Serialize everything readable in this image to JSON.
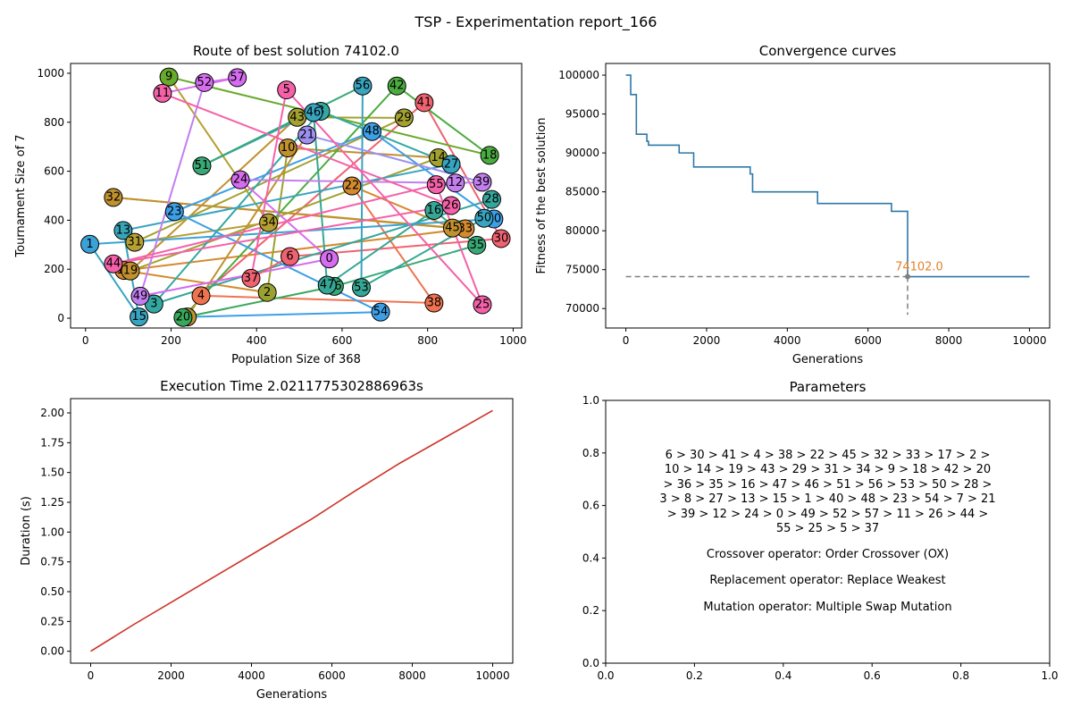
{
  "suptitle": "TSP - Experimentation report_166",
  "chart_data": [
    {
      "type": "scatter",
      "id": "route",
      "title": "Route of best solution 74102.0",
      "xlabel": "Population Size of 368",
      "ylabel": "Tournament Size of 7",
      "xlim": [
        -35,
        1020
      ],
      "ylim": [
        -40,
        1040
      ],
      "xticks": [
        0,
        200,
        400,
        600,
        800,
        1000
      ],
      "yticks": [
        0,
        200,
        400,
        600,
        800,
        1000
      ],
      "grid": false,
      "cities": [
        {
          "id": 0,
          "x": 570,
          "y": 242,
          "color": "#d66cf0"
        },
        {
          "id": 1,
          "x": 10,
          "y": 302,
          "color": "#3aa2d6"
        },
        {
          "id": 2,
          "x": 425,
          "y": 105,
          "color": "#9aa130"
        },
        {
          "id": 3,
          "x": 160,
          "y": 58,
          "color": "#33a8a2"
        },
        {
          "id": 4,
          "x": 270,
          "y": 92,
          "color": "#f0734f"
        },
        {
          "id": 5,
          "x": 470,
          "y": 932,
          "color": "#f561a8"
        },
        {
          "id": 6,
          "x": 478,
          "y": 252,
          "color": "#ef6270"
        },
        {
          "id": 7,
          "x": 238,
          "y": 5,
          "color": "#c0912e"
        },
        {
          "id": 8,
          "x": 550,
          "y": 845,
          "color": "#33a8a2"
        },
        {
          "id": 9,
          "x": 195,
          "y": 985,
          "color": "#68aa2d"
        },
        {
          "id": 10,
          "x": 473,
          "y": 695,
          "color": "#c0912e"
        },
        {
          "id": 11,
          "x": 180,
          "y": 918,
          "color": "#f561a8"
        },
        {
          "id": 12,
          "x": 865,
          "y": 552,
          "color": "#c37ef0"
        },
        {
          "id": 13,
          "x": 88,
          "y": 358,
          "color": "#36a5b8"
        },
        {
          "id": 14,
          "x": 825,
          "y": 655,
          "color": "#a3a12f"
        },
        {
          "id": 15,
          "x": 125,
          "y": 5,
          "color": "#37a4c0"
        },
        {
          "id": 16,
          "x": 815,
          "y": 440,
          "color": "#36a796"
        },
        {
          "id": 17,
          "x": 90,
          "y": 195,
          "color": "#d48a2e"
        },
        {
          "id": 18,
          "x": 945,
          "y": 665,
          "color": "#4aac3f"
        },
        {
          "id": 19,
          "x": 105,
          "y": 193,
          "color": "#c0912e"
        },
        {
          "id": 20,
          "x": 228,
          "y": 3,
          "color": "#38a85a"
        },
        {
          "id": 21,
          "x": 518,
          "y": 748,
          "color": "#9d90f2"
        },
        {
          "id": 22,
          "x": 623,
          "y": 540,
          "color": "#d48a2e"
        },
        {
          "id": 23,
          "x": 208,
          "y": 435,
          "color": "#3d9fe6"
        },
        {
          "id": 24,
          "x": 362,
          "y": 565,
          "color": "#d66cf0"
        },
        {
          "id": 25,
          "x": 928,
          "y": 55,
          "color": "#f561a8"
        },
        {
          "id": 26,
          "x": 855,
          "y": 460,
          "color": "#f561a8"
        },
        {
          "id": 27,
          "x": 855,
          "y": 628,
          "color": "#37a4c0"
        },
        {
          "id": 28,
          "x": 950,
          "y": 485,
          "color": "#35a69c"
        },
        {
          "id": 29,
          "x": 745,
          "y": 818,
          "color": "#a3a12f"
        },
        {
          "id": 30,
          "x": 972,
          "y": 325,
          "color": "#ef6270"
        },
        {
          "id": 31,
          "x": 115,
          "y": 310,
          "color": "#b6a032"
        },
        {
          "id": 32,
          "x": 65,
          "y": 493,
          "color": "#c0912e"
        },
        {
          "id": 33,
          "x": 888,
          "y": 365,
          "color": "#d48a2e"
        },
        {
          "id": 34,
          "x": 428,
          "y": 390,
          "color": "#b6a032"
        },
        {
          "id": 35,
          "x": 915,
          "y": 298,
          "color": "#38a876"
        },
        {
          "id": 36,
          "x": 582,
          "y": 130,
          "color": "#38a876"
        },
        {
          "id": 37,
          "x": 387,
          "y": 163,
          "color": "#ef6270"
        },
        {
          "id": 38,
          "x": 815,
          "y": 62,
          "color": "#f0734f"
        },
        {
          "id": 39,
          "x": 928,
          "y": 555,
          "color": "#c37ef0"
        },
        {
          "id": 40,
          "x": 955,
          "y": 405,
          "color": "#3d9fe6"
        },
        {
          "id": 41,
          "x": 792,
          "y": 880,
          "color": "#ef6270"
        },
        {
          "id": 42,
          "x": 728,
          "y": 948,
          "color": "#4aac3f"
        },
        {
          "id": 43,
          "x": 495,
          "y": 820,
          "color": "#a3a12f"
        },
        {
          "id": 44,
          "x": 65,
          "y": 222,
          "color": "#f561a8"
        },
        {
          "id": 45,
          "x": 858,
          "y": 368,
          "color": "#c0912e"
        },
        {
          "id": 46,
          "x": 533,
          "y": 840,
          "color": "#37a4c0"
        },
        {
          "id": 47,
          "x": 565,
          "y": 135,
          "color": "#36a796"
        },
        {
          "id": 48,
          "x": 670,
          "y": 762,
          "color": "#3d9fe6"
        },
        {
          "id": 49,
          "x": 128,
          "y": 90,
          "color": "#c37ef0"
        },
        {
          "id": 50,
          "x": 932,
          "y": 408,
          "color": "#37a4c0"
        },
        {
          "id": 51,
          "x": 272,
          "y": 622,
          "color": "#38a876"
        },
        {
          "id": 52,
          "x": 278,
          "y": 962,
          "color": "#d66cf0"
        },
        {
          "id": 53,
          "x": 645,
          "y": 125,
          "color": "#36a796"
        },
        {
          "id": 54,
          "x": 690,
          "y": 25,
          "color": "#3d9fe6"
        },
        {
          "id": 55,
          "x": 820,
          "y": 545,
          "color": "#f561a8"
        },
        {
          "id": 56,
          "x": 648,
          "y": 948,
          "color": "#37a4c0"
        },
        {
          "id": 57,
          "x": 355,
          "y": 982,
          "color": "#d66cf0"
        }
      ],
      "route": [
        6,
        30,
        41,
        4,
        38,
        22,
        45,
        32,
        33,
        17,
        2,
        10,
        14,
        19,
        43,
        29,
        31,
        34,
        9,
        18,
        42,
        20,
        36,
        35,
        16,
        47,
        46,
        51,
        56,
        53,
        50,
        28,
        3,
        8,
        27,
        13,
        15,
        1,
        40,
        48,
        23,
        54,
        7,
        21,
        39,
        12,
        24,
        0,
        49,
        52,
        57,
        11,
        26,
        44,
        55,
        25,
        5,
        37
      ]
    },
    {
      "type": "line",
      "id": "convergence",
      "title": "Convergence curves",
      "xlabel": "Generations",
      "ylabel": "Fitness of the best solution",
      "xlim": [
        -500,
        10500
      ],
      "ylim": [
        67500,
        101500
      ],
      "xticks": [
        0,
        2000,
        4000,
        6000,
        8000,
        10000
      ],
      "yticks": [
        70000,
        75000,
        80000,
        85000,
        90000,
        95000,
        100000
      ],
      "grid": false,
      "series": [
        {
          "color": "#2e78a8",
          "step": true,
          "x": [
            0,
            120,
            200,
            260,
            520,
            560,
            1320,
            1680,
            3080,
            3140,
            4750,
            6580,
            6980,
            10000
          ],
          "y": [
            100000,
            97500,
            97500,
            92400,
            91500,
            91000,
            90000,
            88200,
            87300,
            85000,
            83500,
            82500,
            74102,
            74102
          ]
        }
      ],
      "annotation": {
        "x": 6980,
        "y": 74102,
        "text": "74102.0",
        "color": "#e0832a",
        "line_color": "#808080",
        "floor": 69200
      }
    },
    {
      "type": "line",
      "id": "time",
      "title": "Execution Time 2.0211775302886963s",
      "xlabel": "Generations",
      "ylabel": "Duration (s)",
      "xlim": [
        -500,
        10500
      ],
      "ylim": [
        -0.1,
        2.12
      ],
      "xticks": [
        0,
        2000,
        4000,
        6000,
        8000,
        10000
      ],
      "yticks": [
        0.0,
        0.25,
        0.5,
        0.75,
        1.0,
        1.25,
        1.5,
        1.75,
        2.0
      ],
      "ytick_labels": [
        "0.00",
        "0.25",
        "0.50",
        "0.75",
        "1.00",
        "1.25",
        "1.50",
        "1.75",
        "2.00"
      ],
      "grid": false,
      "series": [
        {
          "color": "#cc3328",
          "x": [
            0,
            1100,
            2200,
            3300,
            4400,
            5500,
            6600,
            7700,
            8800,
            10000
          ],
          "y": [
            0.0,
            0.23,
            0.45,
            0.67,
            0.89,
            1.11,
            1.35,
            1.58,
            1.79,
            2.02
          ]
        }
      ]
    }
  ],
  "params": {
    "title": "Parameters",
    "xlim": [
      0,
      1
    ],
    "ylim": [
      0,
      1
    ],
    "xticks": [
      0.0,
      0.2,
      0.4,
      0.6,
      0.8,
      1.0
    ],
    "xtick_labels": [
      "0.0",
      "0.2",
      "0.4",
      "0.6",
      "0.8",
      "1.0"
    ],
    "yticks": [
      0.0,
      0.2,
      0.4,
      0.6,
      0.8,
      1.0
    ],
    "ytick_labels": [
      "0.0",
      "0.2",
      "0.4",
      "0.6",
      "0.8",
      "1.0"
    ],
    "route_lines": [
      "6 > 30 > 41 > 4 > 38 > 22 > 45 > 32 > 33 > 17 > 2 >",
      "10 > 14 > 19 > 43 > 29 > 31 > 34 > 9 > 18 > 42 > 20",
      "> 36 > 35 > 16 > 47 > 46 > 51 > 56 > 53 > 50 > 28 >",
      "3 > 8 > 27 > 13 > 15 > 1 > 40 > 48 > 23 > 54 > 7 > 21",
      "> 39 > 12 > 24 > 0 > 49 > 52 > 57 > 11 > 26 > 44 >",
      "55 > 25 > 5 > 37"
    ],
    "crossover": "Crossover operator: Order Crossover (OX)",
    "replacement": "Replacement operator: Replace Weakest",
    "mutation": "Mutation operator: Multiple Swap Mutation"
  }
}
